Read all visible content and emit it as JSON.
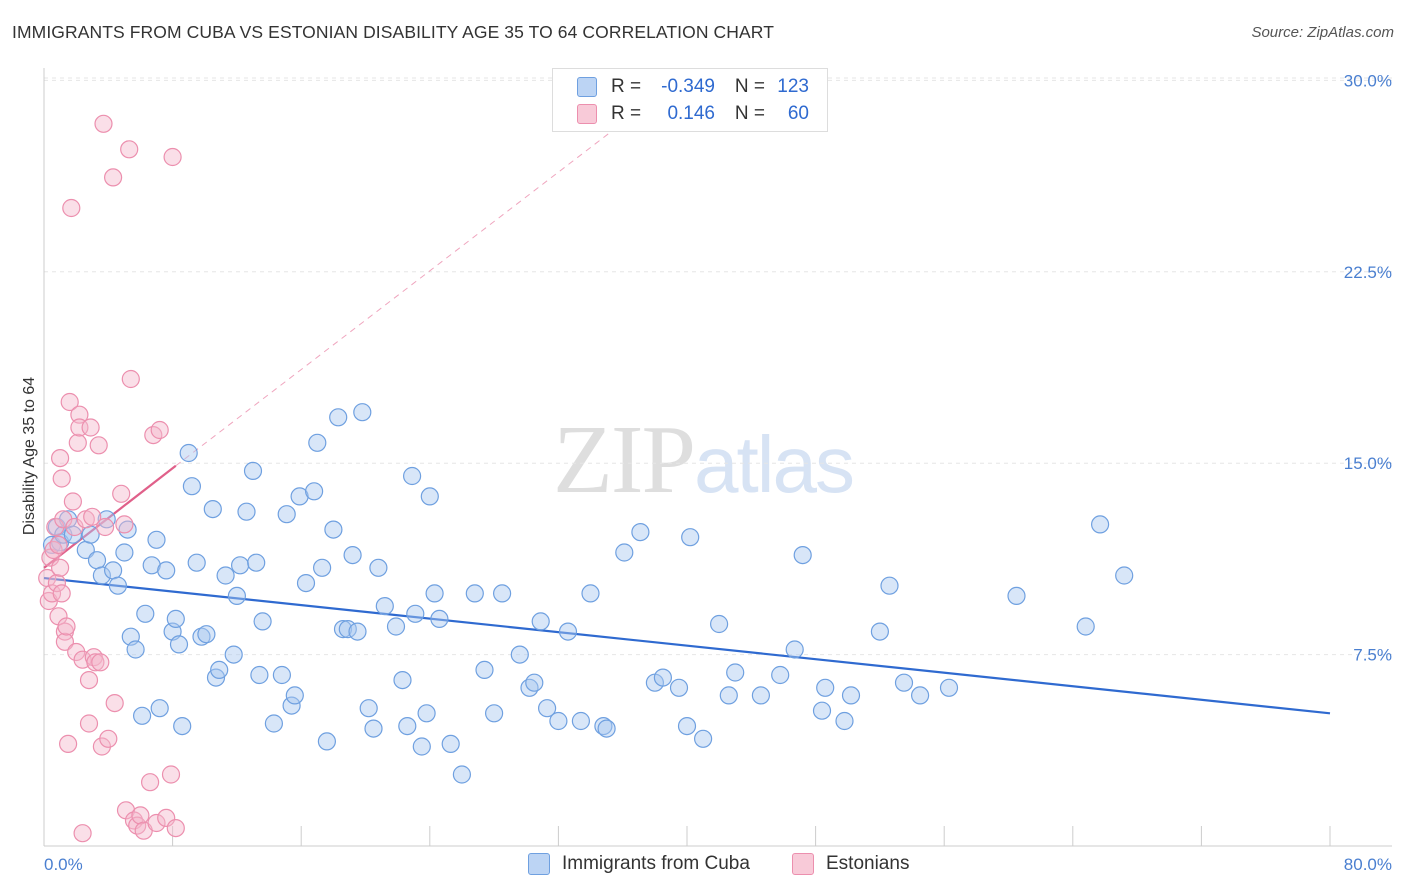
{
  "header": {
    "title": "IMMIGRANTS FROM CUBA VS ESTONIAN DISABILITY AGE 35 TO 64 CORRELATION CHART",
    "source": "Source: ZipAtlas.com"
  },
  "watermark": {
    "part1": "ZIP",
    "part2": "atlas"
  },
  "legend": {
    "rows": [
      {
        "r_label": "R =",
        "r_value": "-0.349",
        "n_label": "N =",
        "n_value": "123",
        "color": "#a9c8f0"
      },
      {
        "r_label": "R =",
        "r_value": "0.146",
        "n_label": "N =",
        "n_value": "60",
        "color": "#f5b8cb"
      }
    ]
  },
  "bottom_legend": {
    "series1": "Immigrants from Cuba",
    "series2": "Estonians"
  },
  "colors": {
    "blue_fill": "#a9c8f0",
    "blue_stroke": "#6fa0e0",
    "blue_line": "#2f6ad0",
    "pink_fill": "#f5b8cb",
    "pink_stroke": "#ec8fae",
    "pink_line": "#e0608a",
    "grid": "#e6e6e6",
    "axis_text": "#4a7fd0"
  },
  "chart_data": {
    "type": "scatter",
    "title": "IMMIGRANTS FROM CUBA VS ESTONIAN DISABILITY AGE 35 TO 64 CORRELATION CHART",
    "xlabel": "",
    "ylabel": "Disability Age 35 to 64",
    "xlim": [
      0,
      80
    ],
    "ylim": [
      0,
      31
    ],
    "y_ticks": [
      7.5,
      15.0,
      22.5,
      30.0
    ],
    "y_tick_labels": [
      "7.5%",
      "15.0%",
      "22.5%",
      "30.0%"
    ],
    "x_tick_labels": [
      "0.0%",
      "80.0%"
    ],
    "grid": true,
    "legend_position": "top-center",
    "series": [
      {
        "name": "Immigrants from Cuba",
        "color": "#a9c8f0",
        "r": -0.349,
        "n": 123,
        "trend": {
          "x": [
            0,
            80
          ],
          "y": [
            10.5,
            5.2
          ],
          "style": "solid"
        },
        "points": [
          [
            0.5,
            11.8
          ],
          [
            0.8,
            12.5
          ],
          [
            1.0,
            11.9
          ],
          [
            1.2,
            12.2
          ],
          [
            1.5,
            12.8
          ],
          [
            1.8,
            12.2
          ],
          [
            2.6,
            11.6
          ],
          [
            2.9,
            12.2
          ],
          [
            3.3,
            11.2
          ],
          [
            3.6,
            10.6
          ],
          [
            3.9,
            12.8
          ],
          [
            4.3,
            10.8
          ],
          [
            4.6,
            10.2
          ],
          [
            5.0,
            11.5
          ],
          [
            5.2,
            12.4
          ],
          [
            5.4,
            8.2
          ],
          [
            5.7,
            7.7
          ],
          [
            6.1,
            5.1
          ],
          [
            6.3,
            9.1
          ],
          [
            6.7,
            11.0
          ],
          [
            7.0,
            12.0
          ],
          [
            7.2,
            5.4
          ],
          [
            7.6,
            10.8
          ],
          [
            8.0,
            8.4
          ],
          [
            8.2,
            8.9
          ],
          [
            8.4,
            7.9
          ],
          [
            8.6,
            4.7
          ],
          [
            9.0,
            15.4
          ],
          [
            9.2,
            14.1
          ],
          [
            9.5,
            11.1
          ],
          [
            9.8,
            8.2
          ],
          [
            10.1,
            8.3
          ],
          [
            10.5,
            13.2
          ],
          [
            10.7,
            6.6
          ],
          [
            10.9,
            6.9
          ],
          [
            11.3,
            10.6
          ],
          [
            11.8,
            7.5
          ],
          [
            12.0,
            9.8
          ],
          [
            12.2,
            11.0
          ],
          [
            12.6,
            13.1
          ],
          [
            13.0,
            14.7
          ],
          [
            13.2,
            11.1
          ],
          [
            13.4,
            6.7
          ],
          [
            13.6,
            8.8
          ],
          [
            14.3,
            4.8
          ],
          [
            14.8,
            6.7
          ],
          [
            15.1,
            13.0
          ],
          [
            15.4,
            5.5
          ],
          [
            15.6,
            5.9
          ],
          [
            15.9,
            13.7
          ],
          [
            16.3,
            10.3
          ],
          [
            16.8,
            13.9
          ],
          [
            17.0,
            15.8
          ],
          [
            17.3,
            10.9
          ],
          [
            17.6,
            4.1
          ],
          [
            18.0,
            12.4
          ],
          [
            18.3,
            16.8
          ],
          [
            18.6,
            8.5
          ],
          [
            18.9,
            8.5
          ],
          [
            19.2,
            11.4
          ],
          [
            19.5,
            8.4
          ],
          [
            19.8,
            17.0
          ],
          [
            20.2,
            5.4
          ],
          [
            20.5,
            4.6
          ],
          [
            20.8,
            10.9
          ],
          [
            21.2,
            9.4
          ],
          [
            21.9,
            8.6
          ],
          [
            22.3,
            6.5
          ],
          [
            22.6,
            4.7
          ],
          [
            22.9,
            14.5
          ],
          [
            23.1,
            9.1
          ],
          [
            23.5,
            3.9
          ],
          [
            23.8,
            5.2
          ],
          [
            24.0,
            13.7
          ],
          [
            24.3,
            9.9
          ],
          [
            24.6,
            8.9
          ],
          [
            25.3,
            4.0
          ],
          [
            26.0,
            2.8
          ],
          [
            26.8,
            9.9
          ],
          [
            27.4,
            6.9
          ],
          [
            28.0,
            5.2
          ],
          [
            28.5,
            9.9
          ],
          [
            29.6,
            7.5
          ],
          [
            30.2,
            6.2
          ],
          [
            30.5,
            6.4
          ],
          [
            30.9,
            8.8
          ],
          [
            31.3,
            5.4
          ],
          [
            32.0,
            4.9
          ],
          [
            32.6,
            8.4
          ],
          [
            33.4,
            4.9
          ],
          [
            34.0,
            9.9
          ],
          [
            34.8,
            4.7
          ],
          [
            35.0,
            4.6
          ],
          [
            36.1,
            11.5
          ],
          [
            37.1,
            12.3
          ],
          [
            38.0,
            6.4
          ],
          [
            38.5,
            6.6
          ],
          [
            39.5,
            6.2
          ],
          [
            40.0,
            4.7
          ],
          [
            40.2,
            12.1
          ],
          [
            41.0,
            4.2
          ],
          [
            42.0,
            8.7
          ],
          [
            42.6,
            5.9
          ],
          [
            43.0,
            6.8
          ],
          [
            44.6,
            5.9
          ],
          [
            45.8,
            6.7
          ],
          [
            46.7,
            7.7
          ],
          [
            47.2,
            11.4
          ],
          [
            48.4,
            5.3
          ],
          [
            48.6,
            6.2
          ],
          [
            49.8,
            4.9
          ],
          [
            50.2,
            5.9
          ],
          [
            52.0,
            8.4
          ],
          [
            52.6,
            10.2
          ],
          [
            53.5,
            6.4
          ],
          [
            54.5,
            5.9
          ],
          [
            56.3,
            6.2
          ],
          [
            60.5,
            9.8
          ],
          [
            64.8,
            8.6
          ],
          [
            65.7,
            12.6
          ],
          [
            67.2,
            10.6
          ]
        ]
      },
      {
        "name": "Estonians",
        "color": "#f5b8cb",
        "r": 0.146,
        "n": 60,
        "trend": {
          "x": [
            0,
            8.2
          ],
          "y": [
            10.9,
            14.9
          ],
          "style": "solid",
          "extended": {
            "x": [
              8.2,
              35.3
            ],
            "y": [
              14.9,
              28.0
            ],
            "style": "dashed"
          }
        },
        "points": [
          [
            0.2,
            10.5
          ],
          [
            0.3,
            9.6
          ],
          [
            0.4,
            11.3
          ],
          [
            0.5,
            9.9
          ],
          [
            0.6,
            11.6
          ],
          [
            0.7,
            12.5
          ],
          [
            0.8,
            10.3
          ],
          [
            0.9,
            11.8
          ],
          [
            0.9,
            9.0
          ],
          [
            1.0,
            10.9
          ],
          [
            1.0,
            15.2
          ],
          [
            1.1,
            14.4
          ],
          [
            1.1,
            9.9
          ],
          [
            1.2,
            12.8
          ],
          [
            1.3,
            8.4
          ],
          [
            1.3,
            8.0
          ],
          [
            1.4,
            8.6
          ],
          [
            1.5,
            4.0
          ],
          [
            1.6,
            17.4
          ],
          [
            1.7,
            25.0
          ],
          [
            1.8,
            13.5
          ],
          [
            1.9,
            12.5
          ],
          [
            2.0,
            7.6
          ],
          [
            2.1,
            15.8
          ],
          [
            2.2,
            16.9
          ],
          [
            2.2,
            16.4
          ],
          [
            2.4,
            0.5
          ],
          [
            2.4,
            7.3
          ],
          [
            2.6,
            12.8
          ],
          [
            2.8,
            6.5
          ],
          [
            2.8,
            4.8
          ],
          [
            2.9,
            16.4
          ],
          [
            3.0,
            12.9
          ],
          [
            3.1,
            7.4
          ],
          [
            3.2,
            7.2
          ],
          [
            3.4,
            15.7
          ],
          [
            3.5,
            7.2
          ],
          [
            3.6,
            3.9
          ],
          [
            3.7,
            28.3
          ],
          [
            3.8,
            12.5
          ],
          [
            4.0,
            4.2
          ],
          [
            4.3,
            26.2
          ],
          [
            4.4,
            5.6
          ],
          [
            4.8,
            13.8
          ],
          [
            5.0,
            12.6
          ],
          [
            5.1,
            1.4
          ],
          [
            5.3,
            27.3
          ],
          [
            5.4,
            18.3
          ],
          [
            5.6,
            1.0
          ],
          [
            5.8,
            0.8
          ],
          [
            6.0,
            1.2
          ],
          [
            6.2,
            0.6
          ],
          [
            6.6,
            2.5
          ],
          [
            6.8,
            16.1
          ],
          [
            7.0,
            0.9
          ],
          [
            7.2,
            16.3
          ],
          [
            7.6,
            1.1
          ],
          [
            7.9,
            2.8
          ],
          [
            8.0,
            27.0
          ],
          [
            8.2,
            0.7
          ]
        ]
      }
    ]
  }
}
